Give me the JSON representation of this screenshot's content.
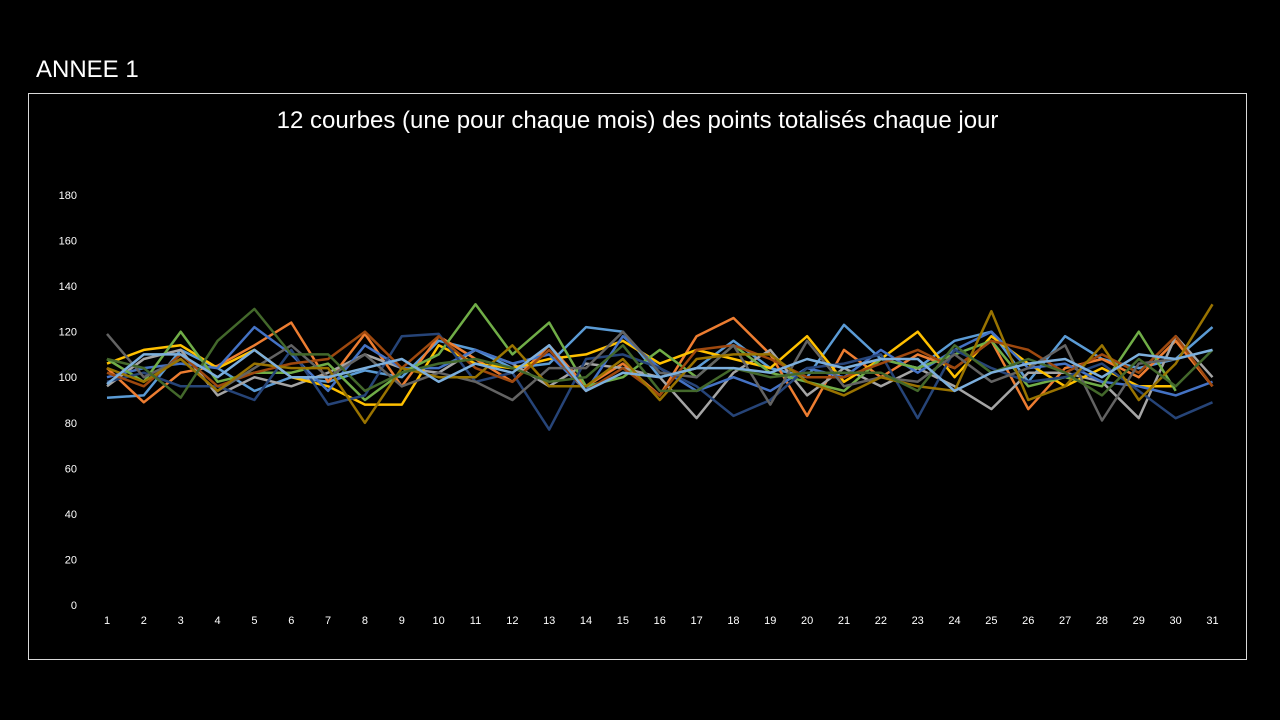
{
  "slide": {
    "title": "ANNEE 1"
  },
  "chart_data": {
    "type": "line",
    "title": "12 courbes (une pour chaque mois) des points totalisés chaque jour",
    "xlabel": "",
    "ylabel": "",
    "ylim": [
      0,
      180
    ],
    "yticks": [
      0,
      20,
      40,
      60,
      80,
      100,
      120,
      140,
      160,
      180
    ],
    "categories": [
      1,
      2,
      3,
      4,
      5,
      6,
      7,
      8,
      9,
      10,
      11,
      12,
      13,
      14,
      15,
      16,
      17,
      18,
      19,
      20,
      21,
      22,
      23,
      24,
      25,
      26,
      27,
      28,
      29,
      30,
      31
    ],
    "grid": false,
    "legend": "none",
    "series": [
      {
        "color": "#5B9BD5",
        "values": [
          91,
          92,
          112,
          104,
          94,
          100,
          98,
          103,
          100,
          116,
          112,
          104,
          106,
          122,
          120,
          100,
          104,
          116,
          104,
          100,
          123,
          108,
          104,
          116,
          120,
          98,
          118,
          108,
          104,
          108,
          122
        ]
      },
      {
        "color": "#ED7D31",
        "values": [
          104,
          89,
          102,
          105,
          114,
          124,
          98,
          119,
          96,
          118,
          108,
          98,
          114,
          96,
          106,
          92,
          118,
          126,
          110,
          83,
          112,
          100,
          110,
          104,
          116,
          86,
          104,
          108,
          100,
          116,
          96
        ]
      },
      {
        "color": "#A5A5A5",
        "values": [
          96,
          108,
          112,
          92,
          100,
          96,
          102,
          110,
          104,
          102,
          112,
          106,
          96,
          106,
          104,
          100,
          82,
          102,
          112,
          92,
          104,
          96,
          104,
          96,
          86,
          102,
          102,
          98,
          82,
          118,
          100
        ]
      },
      {
        "color": "#FFC000",
        "values": [
          106,
          112,
          114,
          104,
          112,
          100,
          96,
          88,
          88,
          114,
          106,
          104,
          108,
          110,
          116,
          106,
          112,
          108,
          104,
          118,
          98,
          108,
          120,
          100,
          118,
          106,
          96,
          104,
          96,
          96,
          null
        ]
      },
      {
        "color": "#4472C4",
        "values": [
          100,
          104,
          106,
          104,
          122,
          110,
          94,
          114,
          104,
          104,
          112,
          106,
          110,
          94,
          118,
          104,
          94,
          100,
          94,
          104,
          100,
          112,
          102,
          112,
          120,
          104,
          106,
          98,
          96,
          92,
          98
        ]
      },
      {
        "color": "#70AD47",
        "values": [
          108,
          98,
          120,
          98,
          102,
          102,
          106,
          90,
          102,
          110,
          132,
          110,
          124,
          96,
          100,
          112,
          100,
          114,
          102,
          98,
          94,
          108,
          104,
          110,
          116,
          96,
          100,
          96,
          120,
          94,
          null
        ]
      },
      {
        "color": "#264478",
        "values": [
          98,
          102,
          96,
          96,
          90,
          112,
          88,
          92,
          118,
          119,
          98,
          102,
          77,
          108,
          110,
          104,
          96,
          83,
          90,
          104,
          106,
          110,
          82,
          112,
          104,
          98,
          100,
          106,
          94,
          82,
          89
        ]
      },
      {
        "color": "#9E480E",
        "values": [
          102,
          96,
          110,
          96,
          102,
          106,
          108,
          120,
          104,
          118,
          104,
          98,
          112,
          94,
          104,
          92,
          112,
          114,
          108,
          100,
          100,
          106,
          112,
          104,
          116,
          112,
          102,
          110,
          102,
          118,
          96
        ]
      },
      {
        "color": "#636363",
        "values": [
          119,
          100,
          108,
          94,
          104,
          114,
          100,
          110,
          96,
          102,
          98,
          90,
          104,
          104,
          120,
          102,
          100,
          114,
          88,
          116,
          96,
          100,
          98,
          110,
          98,
          104,
          114,
          81,
          106,
          108,
          null
        ]
      },
      {
        "color": "#997300",
        "values": [
          104,
          98,
          108,
          94,
          106,
          104,
          104,
          80,
          104,
          100,
          100,
          114,
          96,
          96,
          108,
          90,
          108,
          110,
          110,
          98,
          92,
          100,
          96,
          94,
          129,
          90,
          96,
          114,
          90,
          106,
          132
        ]
      },
      {
        "color": "#43682B",
        "values": [
          108,
          104,
          91,
          116,
          130,
          110,
          110,
          94,
          102,
          106,
          108,
          104,
          98,
          100,
          114,
          94,
          94,
          104,
          100,
          102,
          102,
          102,
          94,
          114,
          102,
          108,
          102,
          92,
          108,
          96,
          112
        ]
      },
      {
        "color": "#7CAFDD",
        "values": [
          97,
          110,
          110,
          100,
          112,
          100,
          100,
          104,
          108,
          98,
          106,
          102,
          114,
          94,
          102,
          100,
          104,
          104,
          102,
          108,
          104,
          108,
          108,
          94,
          102,
          106,
          108,
          100,
          110,
          108,
          112
        ]
      }
    ]
  }
}
